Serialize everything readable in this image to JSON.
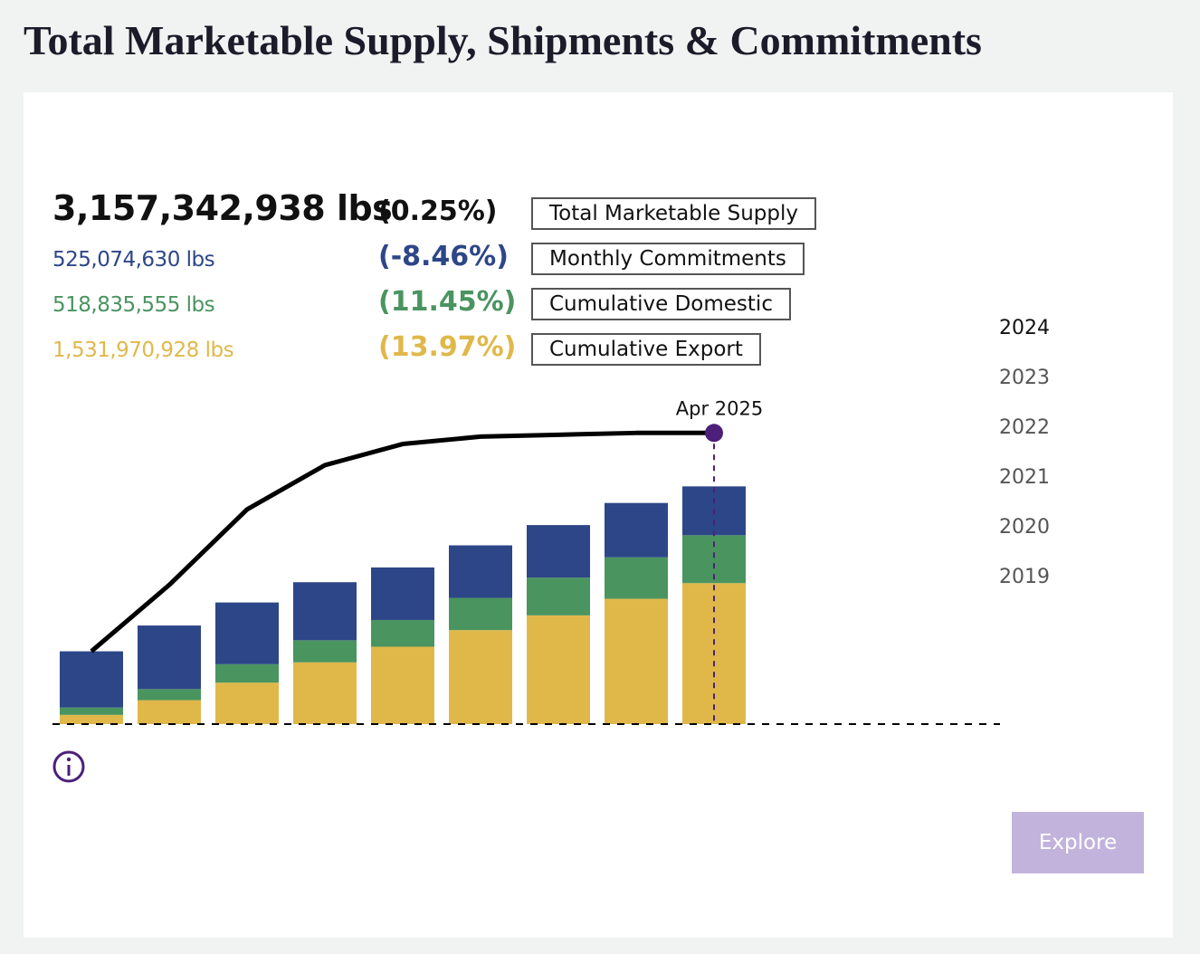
{
  "header": {
    "title": "Total Marketable Supply, Shipments & Commitments"
  },
  "stats": [
    {
      "amount": "3,157,342,938 lbs",
      "change": "(0.25%)",
      "label": "Total Marketable Supply",
      "color": "#111111"
    },
    {
      "amount": "525,074,630 lbs",
      "change": "(-8.46%)",
      "label": "Monthly Commitments",
      "color": "#2d4688"
    },
    {
      "amount": "518,835,555 lbs",
      "change": "(11.45%)",
      "label": "Cumulative Domestic",
      "color": "#4a9460"
    },
    {
      "amount": "1,531,970,928 lbs",
      "change": "(13.97%)",
      "label": "Cumulative Export",
      "color": "#e0b84a"
    }
  ],
  "years": [
    "2024",
    "2023",
    "2022",
    "2021",
    "2020",
    "2019"
  ],
  "chart_data": {
    "type": "bar",
    "categories": [
      null,
      null,
      null,
      null,
      null,
      null,
      null,
      null,
      null
    ],
    "series": [
      {
        "name": "Cumulative Export",
        "color": "#e0b84a",
        "values": [
          100000000,
          260000000,
          450000000,
          670000000,
          840000000,
          1020000000,
          1180000000,
          1360000000,
          1530000000
        ]
      },
      {
        "name": "Cumulative Domestic",
        "color": "#4a9460",
        "values": [
          80000000,
          120000000,
          200000000,
          240000000,
          290000000,
          350000000,
          410000000,
          450000000,
          520000000
        ]
      },
      {
        "name": "Monthly Commitments",
        "color": "#2d4688",
        "values": [
          610000000,
          690000000,
          670000000,
          630000000,
          570000000,
          570000000,
          570000000,
          590000000,
          530000000
        ]
      }
    ],
    "line": {
      "name": "Total Marketable Supply",
      "color": "#000000",
      "values": [
        790000000,
        1510000000,
        2330000000,
        2810000000,
        3040000000,
        3120000000,
        3140000000,
        3160000000,
        3160000000
      ]
    },
    "ylim": [
      0,
      3500000000
    ],
    "annotation": {
      "text": "Apr 2025",
      "index": 8,
      "color": "#4b1f7a"
    }
  },
  "button": {
    "label": "Explore"
  }
}
